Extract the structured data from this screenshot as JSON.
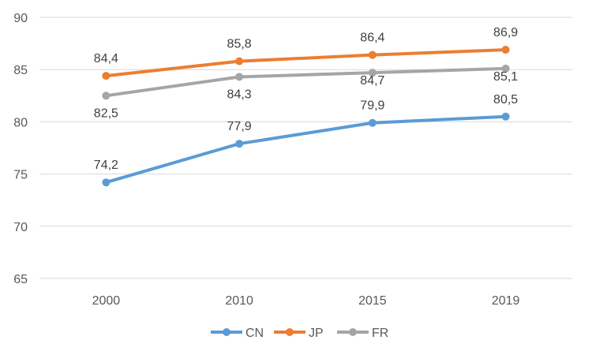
{
  "chart_data": {
    "type": "line",
    "categories": [
      "2000",
      "2010",
      "2015",
      "2019"
    ],
    "series": [
      {
        "name": "CN",
        "values": [
          74.2,
          77.9,
          79.9,
          80.5
        ],
        "labels": [
          "74,2",
          "77,9",
          "79,9",
          "80,5"
        ],
        "color": "#5b9bd5"
      },
      {
        "name": "JP",
        "values": [
          84.4,
          85.8,
          86.4,
          86.9
        ],
        "labels": [
          "84,4",
          "85,8",
          "86,4",
          "86,9"
        ],
        "color": "#ed7d31"
      },
      {
        "name": "FR",
        "values": [
          82.5,
          84.3,
          84.7,
          85.1
        ],
        "labels": [
          "82,5",
          "84,3",
          "84,7",
          "85,1"
        ],
        "color": "#a5a5a5"
      }
    ],
    "ylim": [
      65,
      90
    ],
    "yticks": [
      65,
      70,
      75,
      80,
      85,
      90
    ],
    "grid": true,
    "legend": "bottom",
    "title": "",
    "xlabel": "",
    "ylabel": ""
  }
}
